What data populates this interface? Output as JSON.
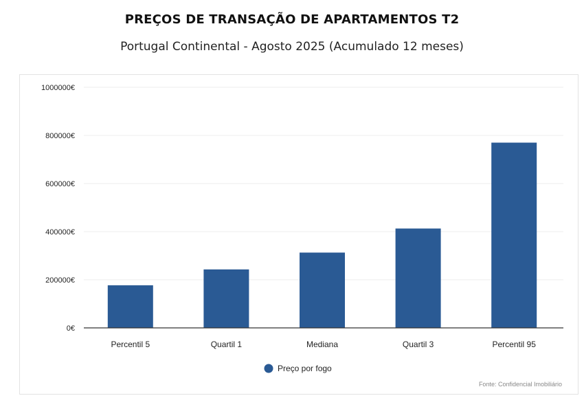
{
  "header": {
    "title": "PREÇOS DE TRANSAÇÃO DE APARTAMENTOS T2",
    "subtitle": "Portugal Continental - Agosto 2025 (Acumulado 12 meses)"
  },
  "chart_data": {
    "type": "bar",
    "categories": [
      "Percentil 5",
      "Quartil 1",
      "Mediana",
      "Quartil 3",
      "Percentil 95"
    ],
    "series": [
      {
        "name": "Preço por fogo",
        "values": [
          177000,
          243000,
          313000,
          413000,
          770000
        ],
        "color": "#2a5a94"
      }
    ],
    "ylim": [
      0,
      1000000
    ],
    "yticks": [
      0,
      200000,
      400000,
      600000,
      800000,
      1000000
    ],
    "ytick_labels": [
      "0€",
      "200000€",
      "400000€",
      "600000€",
      "800000€",
      "1000000€"
    ],
    "legend": {
      "position": "bottom-center",
      "label": "Preço por fogo"
    },
    "grid": true,
    "source": "Fonte: Confidencial Imobiliário"
  }
}
